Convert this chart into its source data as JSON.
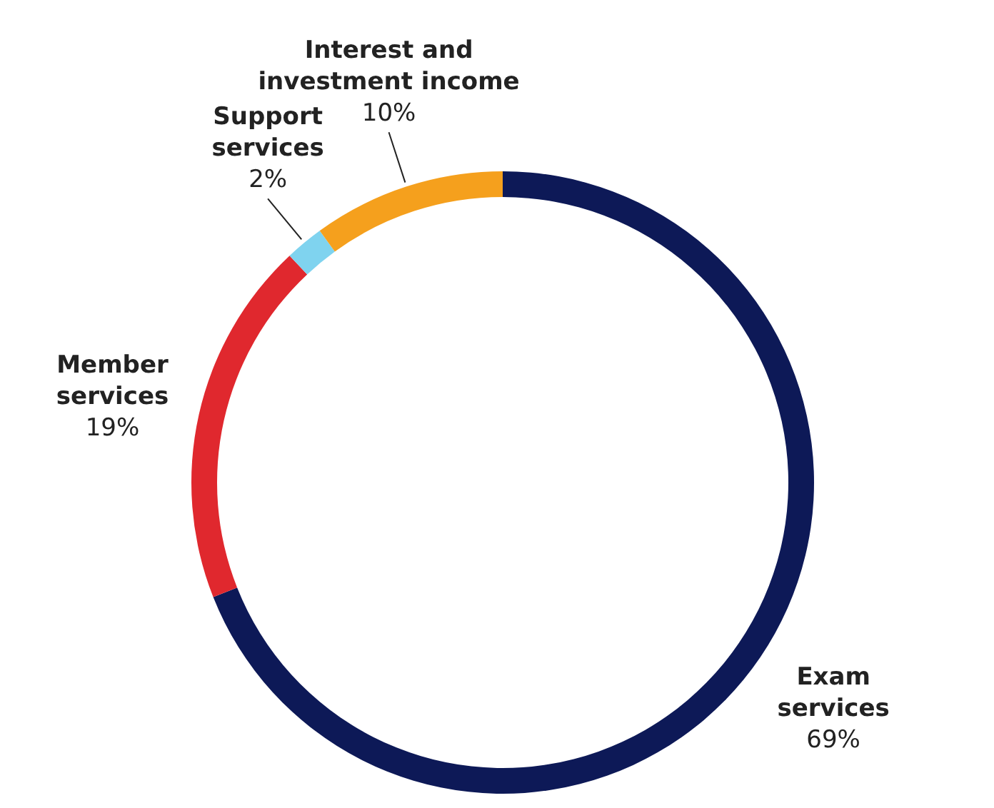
{
  "chart_data": {
    "type": "donut",
    "categories": [
      "Exam services",
      "Member services",
      "Support services",
      "Interest and investment income"
    ],
    "values": [
      69,
      19,
      2,
      10
    ],
    "colors": [
      "#0d1957",
      "#e0282e",
      "#7fd3ef",
      "#f5a01d"
    ],
    "value_labels": [
      "69%",
      "19%",
      "2%",
      "10%"
    ]
  }
}
